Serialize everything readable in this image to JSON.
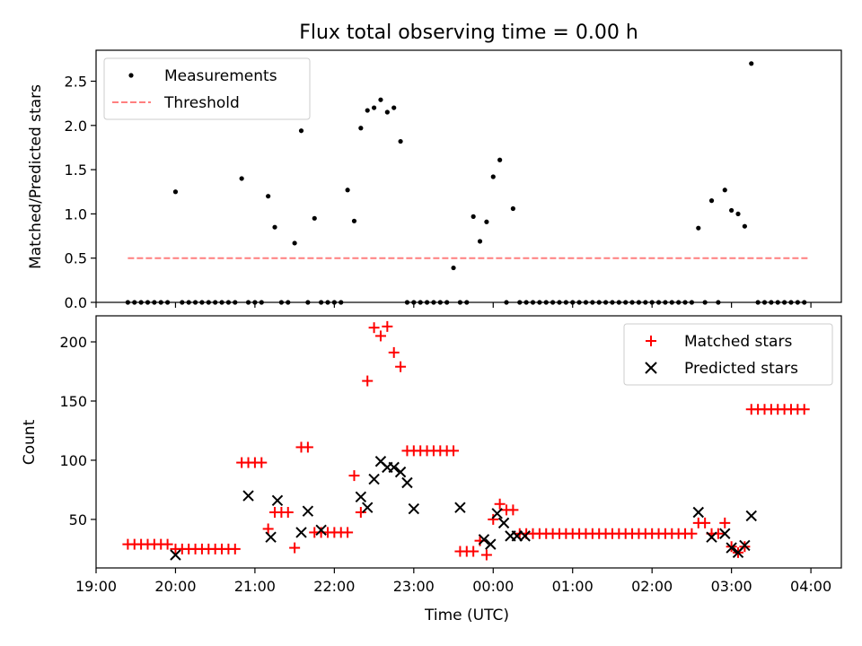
{
  "title": "Flux total observing time = 0.00 h",
  "xlabel": "Time (UTC)",
  "xticks": [
    "19:00",
    "20:00",
    "21:00",
    "22:00",
    "23:00",
    "00:00",
    "01:00",
    "02:00",
    "03:00",
    "04:00"
  ],
  "chart_data": [
    {
      "type": "scatter",
      "ylabel": "Matched/Predicted stars",
      "xlim": [
        "19:00",
        "04:23"
      ],
      "ylim": [
        0,
        2.85
      ],
      "yticks": [
        "0.0",
        "0.5",
        "1.0",
        "1.5",
        "2.0",
        "2.5"
      ],
      "legend_position": "top-left",
      "series": [
        {
          "name": "Measurements",
          "marker": "dot",
          "color": "#000000",
          "x": [
            "19:24",
            "19:29",
            "19:34",
            "19:39",
            "19:44",
            "19:49",
            "19:54",
            "20:00",
            "20:05",
            "20:10",
            "20:15",
            "20:20",
            "20:25",
            "20:30",
            "20:35",
            "20:40",
            "20:45",
            "20:50",
            "20:55",
            "21:00",
            "21:05",
            "21:10",
            "21:15",
            "21:20",
            "21:25",
            "21:30",
            "21:35",
            "21:40",
            "21:45",
            "21:50",
            "21:55",
            "22:00",
            "22:05",
            "22:10",
            "22:15",
            "22:20",
            "22:25",
            "22:30",
            "22:35",
            "22:40",
            "22:45",
            "22:50",
            "22:55",
            "23:00",
            "23:05",
            "23:10",
            "23:15",
            "23:20",
            "23:25",
            "23:30",
            "23:35",
            "23:40",
            "23:45",
            "23:50",
            "23:55",
            "00:00",
            "00:05",
            "00:10",
            "00:15",
            "00:20",
            "00:25",
            "00:30",
            "00:35",
            "00:40",
            "00:45",
            "00:50",
            "00:55",
            "01:00",
            "01:05",
            "01:10",
            "01:15",
            "01:20",
            "01:25",
            "01:30",
            "01:35",
            "01:40",
            "01:45",
            "01:50",
            "01:55",
            "02:00",
            "02:05",
            "02:10",
            "02:15",
            "02:20",
            "02:25",
            "02:30",
            "02:35",
            "02:40",
            "02:45",
            "02:50",
            "02:55",
            "03:00",
            "03:05",
            "03:10",
            "03:15",
            "03:20",
            "03:25",
            "03:30",
            "03:35",
            "03:40",
            "03:45",
            "03:50",
            "03:55"
          ],
          "y": [
            0,
            0,
            0,
            0,
            0,
            0,
            0,
            1.25,
            0,
            0,
            0,
            0,
            0,
            0,
            0,
            0,
            0,
            1.4,
            0,
            0,
            0,
            1.2,
            0.85,
            0,
            0,
            0.67,
            1.94,
            0,
            0.95,
            0,
            0,
            0,
            0,
            1.27,
            0.92,
            1.97,
            2.17,
            2.2,
            2.29,
            2.15,
            2.2,
            1.82,
            0,
            0,
            0,
            0,
            0,
            0,
            0,
            0.39,
            0,
            0,
            0.97,
            0.69,
            0.91,
            1.42,
            1.61,
            0,
            1.06,
            0,
            0,
            0,
            0,
            0,
            0,
            0,
            0,
            0,
            0,
            0,
            0,
            0,
            0,
            0,
            0,
            0,
            0,
            0,
            0,
            0,
            0,
            0,
            0,
            0,
            0,
            0,
            0.84,
            0,
            1.15,
            0,
            1.27,
            1.04,
            1.0,
            0.86,
            2.7,
            0,
            0,
            0,
            0,
            0,
            0,
            0,
            0
          ]
        },
        {
          "name": "Threshold",
          "marker": "dashed-line",
          "color": "#ff7f7f",
          "x": [
            "19:24",
            "03:58"
          ],
          "y": [
            0.5,
            0.5
          ]
        }
      ]
    },
    {
      "type": "scatter",
      "ylabel": "Count",
      "xlim": [
        "19:00",
        "04:23"
      ],
      "ylim": [
        9,
        222
      ],
      "yticks": [
        "50",
        "100",
        "150",
        "200"
      ],
      "legend_position": "top-right",
      "series": [
        {
          "name": "Matched stars",
          "marker": "plus",
          "color": "#ff0000",
          "x": [
            "19:24",
            "19:29",
            "19:34",
            "19:39",
            "19:44",
            "19:49",
            "19:54",
            "20:00",
            "20:05",
            "20:10",
            "20:15",
            "20:20",
            "20:25",
            "20:30",
            "20:35",
            "20:40",
            "20:45",
            "20:50",
            "20:55",
            "21:00",
            "21:05",
            "21:10",
            "21:15",
            "21:20",
            "21:25",
            "21:30",
            "21:35",
            "21:40",
            "21:45",
            "21:50",
            "21:55",
            "22:00",
            "22:05",
            "22:10",
            "22:15",
            "22:20",
            "22:25",
            "22:30",
            "22:35",
            "22:40",
            "22:45",
            "22:50",
            "22:55",
            "23:00",
            "23:05",
            "23:10",
            "23:15",
            "23:20",
            "23:25",
            "23:30",
            "23:35",
            "23:40",
            "23:45",
            "23:50",
            "23:55",
            "00:00",
            "00:05",
            "00:10",
            "00:15",
            "00:20",
            "00:25",
            "00:30",
            "00:35",
            "00:40",
            "00:45",
            "00:50",
            "00:55",
            "01:00",
            "01:05",
            "01:10",
            "01:15",
            "01:20",
            "01:25",
            "01:30",
            "01:35",
            "01:40",
            "01:45",
            "01:50",
            "01:55",
            "02:00",
            "02:05",
            "02:10",
            "02:15",
            "02:20",
            "02:25",
            "02:30",
            "02:35",
            "02:40",
            "02:45",
            "02:50",
            "02:55",
            "03:00",
            "03:05",
            "03:10",
            "03:15",
            "03:20",
            "03:25",
            "03:30",
            "03:35",
            "03:40",
            "03:45",
            "03:50",
            "03:55"
          ],
          "y": [
            29,
            29,
            29,
            29,
            29,
            29,
            29,
            25,
            25,
            25,
            25,
            25,
            25,
            25,
            25,
            25,
            25,
            98,
            98,
            98,
            98,
            42,
            56,
            56,
            56,
            26,
            111,
            111,
            39,
            39,
            39,
            39,
            39,
            39,
            87,
            56,
            167,
            212,
            205,
            213,
            191,
            179,
            108,
            108,
            108,
            108,
            108,
            108,
            108,
            108,
            23,
            23,
            23,
            32,
            20,
            50,
            63,
            58,
            58,
            38,
            38,
            38,
            38,
            38,
            38,
            38,
            38,
            38,
            38,
            38,
            38,
            38,
            38,
            38,
            38,
            38,
            38,
            38,
            38,
            38,
            38,
            38,
            38,
            38,
            38,
            38,
            47,
            47,
            38,
            38,
            47,
            27,
            22,
            27,
            143,
            143,
            143,
            143,
            143,
            143,
            143,
            143,
            143
          ]
        },
        {
          "name": "Predicted stars",
          "marker": "x",
          "color": "#000000",
          "x": [
            "20:00",
            "20:55",
            "21:12",
            "21:17",
            "21:35",
            "21:40",
            "21:50",
            "22:20",
            "22:25",
            "22:30",
            "22:35",
            "22:40",
            "22:45",
            "22:50",
            "22:55",
            "23:00",
            "23:35",
            "23:53",
            "23:58",
            "00:03",
            "00:08",
            "00:13",
            "00:18",
            "00:24",
            "02:35",
            "02:45",
            "02:55",
            "03:00",
            "03:05",
            "03:10",
            "03:15"
          ],
          "y": [
            20,
            70,
            35,
            66,
            39,
            57,
            41,
            69,
            60,
            84,
            99,
            94,
            94,
            90,
            81,
            59,
            60,
            33,
            29,
            55,
            47,
            36,
            36,
            36,
            56,
            35,
            38,
            26,
            22,
            28,
            53
          ]
        }
      ]
    }
  ]
}
